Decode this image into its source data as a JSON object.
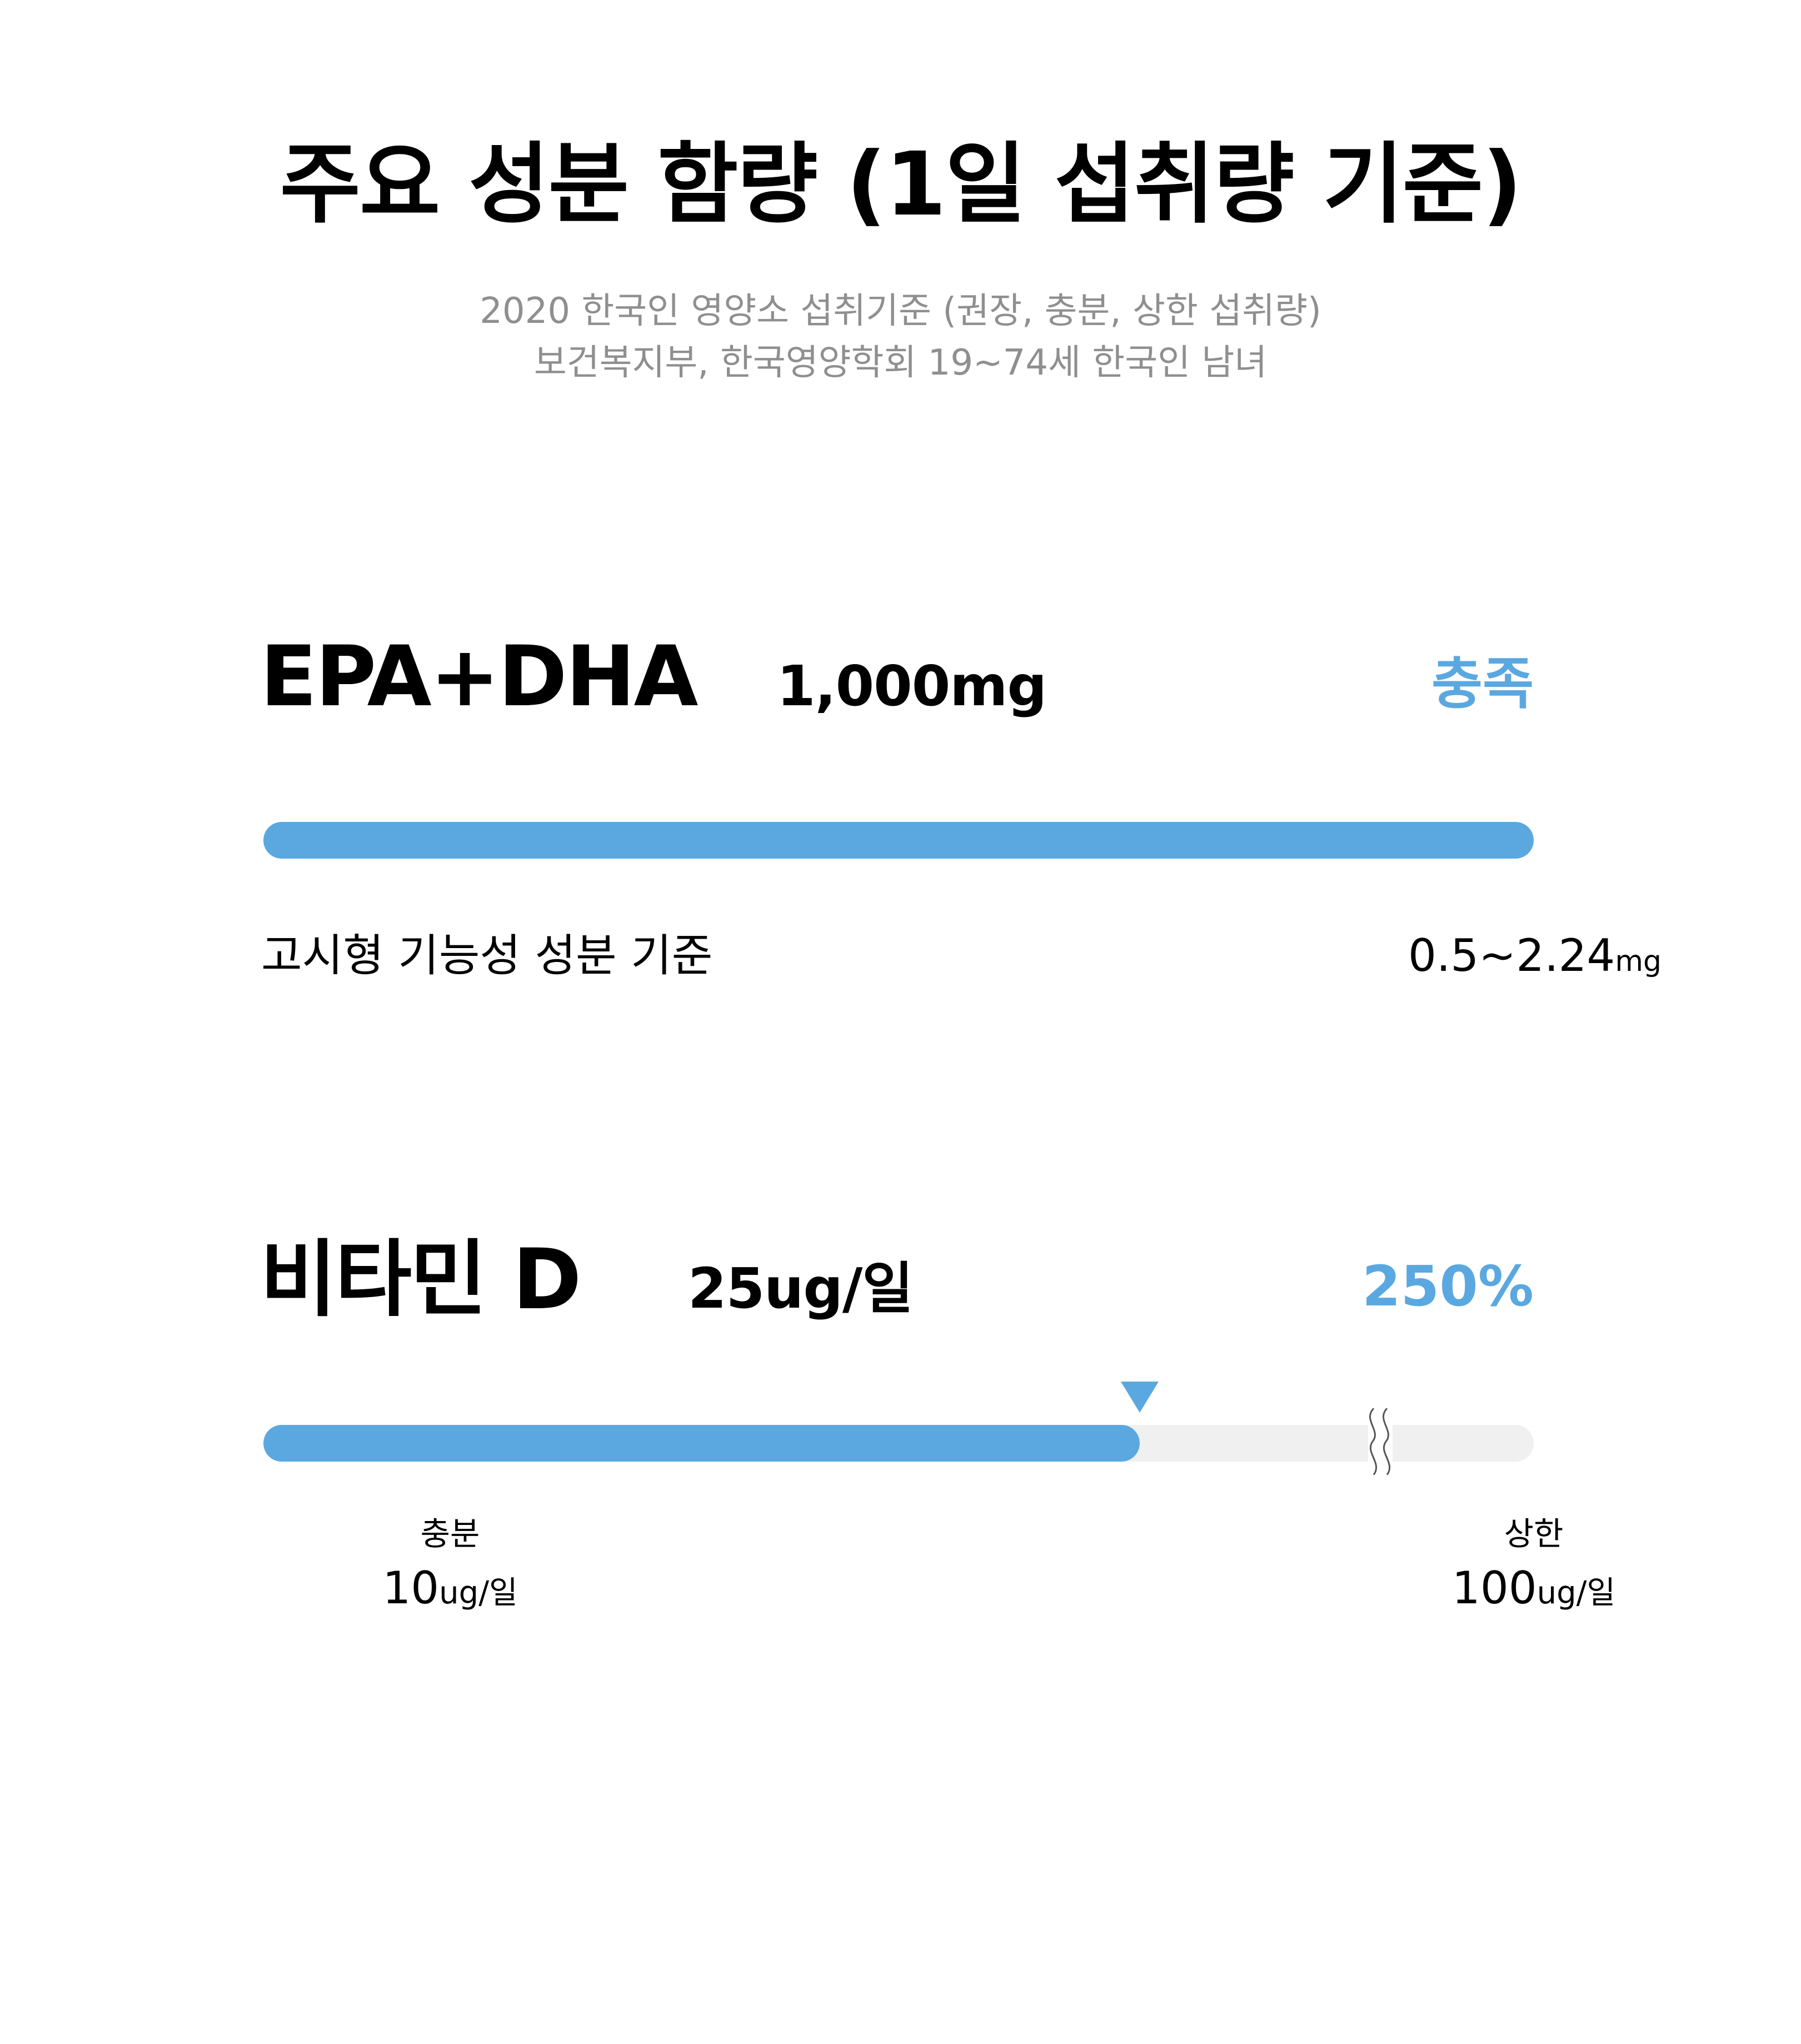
{
  "header": {
    "title": "주요 성분 함량 (1일 섭취량 기준)",
    "subtitle_line1": "2020 한국인 영양소 섭취기준 (권장, 충분, 상한 섭취량)",
    "subtitle_line2": "보건복지부, 한국영양학회  19~74세 한국인 남녀"
  },
  "nutrients": [
    {
      "name": "EPA+DHA",
      "amount": "1,000mg",
      "status": "충족",
      "bar_fill_fraction": 1.0,
      "reference_label": "고시형 기능성 성분 기준",
      "reference_value": "0.5~2.24",
      "reference_unit": "mg"
    },
    {
      "name": "비타민 D",
      "amount": "25ug/일",
      "status": "250%",
      "bar_fill_fraction": 0.69,
      "scale_min_label": "충분",
      "scale_min_value": "10",
      "scale_min_unit": "ug/일",
      "scale_max_label": "상한",
      "scale_max_value": "100",
      "scale_max_unit": "ug/일"
    }
  ],
  "colors": {
    "accent": "#5ba8e0",
    "track": "#f0f0f0",
    "subtitle": "#8f8f8f",
    "text": "#000000"
  },
  "icons": {
    "marker": "triangle-down-icon",
    "scale_break": "axis-break-icon"
  }
}
